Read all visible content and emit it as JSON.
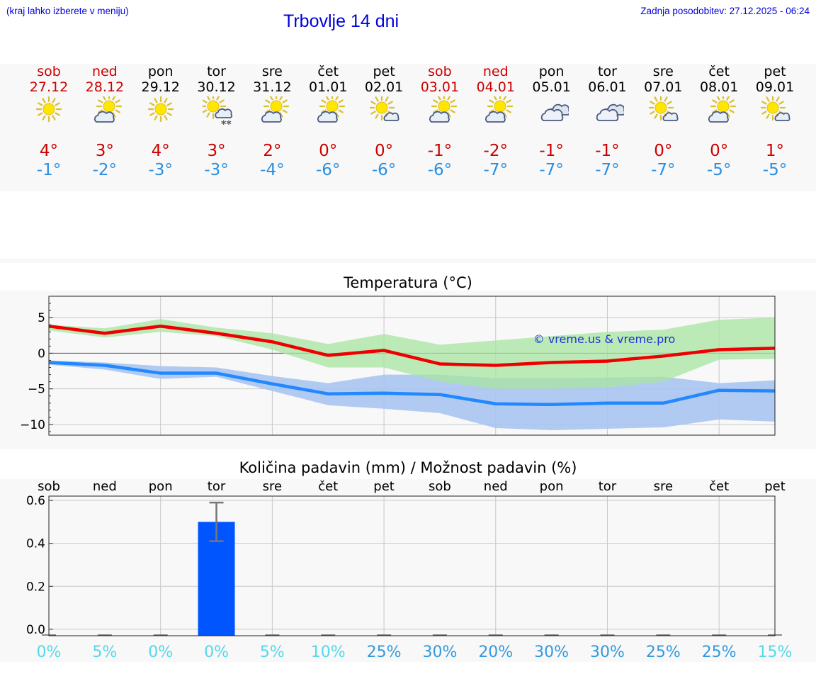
{
  "header": {
    "menu_hint": "(kraj lahko izberete v meniju)",
    "title": "Trbovlje 14 dni",
    "updated": "Zadnja posodobitev: 27.12.2025 - 06:24"
  },
  "days": [
    {
      "name": "sob",
      "date": "27.12",
      "weekend": true,
      "icon": "sun-icon",
      "tmax": "4°",
      "tmin": "-1°"
    },
    {
      "name": "ned",
      "date": "28.12",
      "weekend": true,
      "icon": "sun-cloud-icon",
      "tmax": "3°",
      "tmin": "-2°"
    },
    {
      "name": "pon",
      "date": "29.12",
      "weekend": false,
      "icon": "sun-icon",
      "tmax": "4°",
      "tmin": "-3°"
    },
    {
      "name": "tor",
      "date": "30.12",
      "weekend": false,
      "icon": "sun-cloud-snow-icon",
      "tmax": "3°",
      "tmin": "-3°"
    },
    {
      "name": "sre",
      "date": "31.12",
      "weekend": false,
      "icon": "sun-cloud-icon",
      "tmax": "2°",
      "tmin": "-4°"
    },
    {
      "name": "čet",
      "date": "01.01",
      "weekend": false,
      "icon": "sun-cloud-icon",
      "tmax": "0°",
      "tmin": "-6°"
    },
    {
      "name": "pet",
      "date": "02.01",
      "weekend": false,
      "icon": "sun-small-cloud-icon",
      "tmax": "0°",
      "tmin": "-6°"
    },
    {
      "name": "sob",
      "date": "03.01",
      "weekend": true,
      "icon": "sun-cloud-icon",
      "tmax": "-1°",
      "tmin": "-6°"
    },
    {
      "name": "ned",
      "date": "04.01",
      "weekend": true,
      "icon": "sun-cloud-icon",
      "tmax": "-2°",
      "tmin": "-7°"
    },
    {
      "name": "pon",
      "date": "05.01",
      "weekend": false,
      "icon": "clouds-icon",
      "tmax": "-1°",
      "tmin": "-7°"
    },
    {
      "name": "tor",
      "date": "06.01",
      "weekend": false,
      "icon": "clouds-icon",
      "tmax": "-1°",
      "tmin": "-7°"
    },
    {
      "name": "sre",
      "date": "07.01",
      "weekend": false,
      "icon": "sun-small-cloud-icon",
      "tmax": "0°",
      "tmin": "-7°"
    },
    {
      "name": "čet",
      "date": "08.01",
      "weekend": false,
      "icon": "sun-cloud-icon",
      "tmax": "0°",
      "tmin": "-5°"
    },
    {
      "name": "pet",
      "date": "09.01",
      "weekend": false,
      "icon": "sun-small-cloud-icon",
      "tmax": "1°",
      "tmin": "-5°"
    }
  ],
  "colors": {
    "tmax": "#cc0000",
    "tmin": "#2a8fe0",
    "max_line": "#ee0000",
    "min_line": "#2288ff",
    "max_band": "#a8e6a0",
    "min_band": "#a8c4f0",
    "bar": "#0055ff",
    "pct_low": "#55d8e8",
    "pct_high": "#3399dd"
  },
  "chart_data": [
    {
      "type": "line",
      "title": "Temperatura (°C)",
      "watermark": "© vreme.us & vreme.pro",
      "x": [
        0,
        1,
        2,
        3,
        4,
        5,
        6,
        7,
        8,
        9,
        10,
        11,
        12,
        13
      ],
      "ylim": [
        -11.5,
        8
      ],
      "yticks": [
        5,
        0,
        -5,
        -10
      ],
      "ytick_labels": [
        "5",
        "0",
        "−5",
        "−10"
      ],
      "series": [
        {
          "name": "max",
          "values": [
            3.8,
            2.8,
            3.8,
            2.8,
            1.6,
            -0.3,
            0.4,
            -1.5,
            -1.7,
            -1.3,
            -1.1,
            -0.4,
            0.5,
            0.7
          ]
        },
        {
          "name": "min",
          "values": [
            -1.3,
            -1.7,
            -2.8,
            -2.8,
            -4.3,
            -5.7,
            -5.6,
            -5.8,
            -7.1,
            -7.2,
            -7.0,
            -7.0,
            -5.2,
            -5.3
          ]
        },
        {
          "name": "max_band_upper",
          "values": [
            4.0,
            3.5,
            4.8,
            3.6,
            2.8,
            1.3,
            2.7,
            1.2,
            1.8,
            2.4,
            3.0,
            3.3,
            4.7,
            5.0
          ]
        },
        {
          "name": "max_band_lower",
          "values": [
            3.2,
            2.2,
            3.0,
            2.4,
            0.5,
            -2.0,
            -2.0,
            -4.0,
            -5.0,
            -5.0,
            -4.8,
            -4.0,
            -0.9,
            -0.8
          ]
        },
        {
          "name": "min_band_upper",
          "values": [
            -1.0,
            -1.3,
            -1.8,
            -2.0,
            -3.2,
            -4.2,
            -3.0,
            -3.0,
            -3.5,
            -3.5,
            -3.4,
            -3.3,
            -4.2,
            -3.8
          ]
        },
        {
          "name": "min_band_lower",
          "values": [
            -1.6,
            -2.3,
            -3.6,
            -3.3,
            -5.3,
            -7.3,
            -7.8,
            -8.4,
            -10.5,
            -10.8,
            -10.6,
            -10.4,
            -9.3,
            -9.6
          ]
        }
      ]
    },
    {
      "type": "bar",
      "title": "Količina padavin (mm) / Možnost padavin (%)",
      "categories": [
        "sob",
        "ned",
        "pon",
        "tor",
        "sre",
        "čet",
        "pet",
        "sob",
        "ned",
        "pon",
        "tor",
        "sre",
        "čet",
        "pet"
      ],
      "values": [
        0,
        0,
        0,
        0.5,
        0,
        0,
        0,
        0,
        0,
        0,
        0,
        0,
        0,
        0
      ],
      "error_high": [
        0,
        0,
        0,
        0.59,
        0,
        0,
        0,
        0,
        0,
        0,
        0,
        0,
        0,
        0
      ],
      "error_low": [
        0,
        0,
        0,
        0.41,
        0,
        0,
        0,
        0,
        0,
        0,
        0,
        0,
        0,
        0
      ],
      "ylim": [
        -0.03,
        0.62
      ],
      "yticks": [
        0.0,
        0.2,
        0.4,
        0.6
      ],
      "ytick_labels": [
        "0.0",
        "0.2",
        "0.4",
        "0.6"
      ],
      "probability": [
        "0%",
        "5%",
        "0%",
        "0%",
        "5%",
        "10%",
        "25%",
        "30%",
        "20%",
        "30%",
        "30%",
        "25%",
        "25%",
        "15%"
      ]
    }
  ]
}
